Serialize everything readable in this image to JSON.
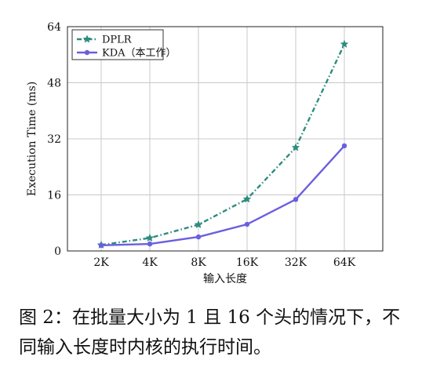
{
  "chart_data": {
    "type": "line",
    "categories": [
      "2K",
      "4K",
      "8K",
      "16K",
      "32K",
      "64K"
    ],
    "series": [
      {
        "name": "DPLR",
        "values": [
          1.7,
          3.7,
          7.5,
          14.8,
          29.5,
          59
        ],
        "color": "#2e8b7f",
        "style": "dashdot",
        "marker": "star"
      },
      {
        "name": "KDA（本工作）",
        "values": [
          1.6,
          2.0,
          4.0,
          7.6,
          14.7,
          30
        ],
        "color": "#6a5ee0",
        "style": "solid",
        "marker": "circle"
      }
    ],
    "xlabel": "输入长度",
    "ylabel": "Execution Time (ms)",
    "ylim": [
      0,
      64
    ],
    "yticks": [
      0,
      16,
      32,
      48,
      64
    ],
    "grid": true,
    "legend": "top-left"
  },
  "caption": "图 2：在批量大小为 1 且 16 个头的情况下，不同输入长度时内核的执行时间。"
}
